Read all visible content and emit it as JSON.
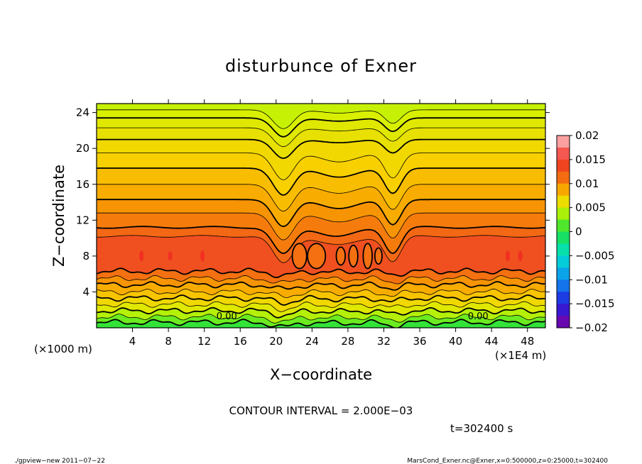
{
  "chart_data": {
    "type": "heatmap",
    "title": "disturbunce of Exner",
    "xlabel": "X−coordinate",
    "ylabel": "Z−coordinate",
    "x_unit_left": "(×1000 m)",
    "x_unit_right": "(×1E4 m)",
    "xlim": [
      0,
      50
    ],
    "ylim": [
      0,
      25
    ],
    "x_ticks": [
      4,
      8,
      12,
      16,
      20,
      24,
      28,
      32,
      36,
      40,
      44,
      48
    ],
    "y_ticks": [
      4,
      8,
      12,
      16,
      20,
      24
    ],
    "contour_interval_text": "CONTOUR INTERVAL = 2.000E−03",
    "time_text": "t=302400 s",
    "colorbar": {
      "ticks": [
        "0.02",
        "0.015",
        "0.01",
        "0.005",
        "0",
        "−0.005",
        "−0.01",
        "−0.015",
        "−0.02"
      ],
      "range": [
        -0.02,
        0.02
      ]
    },
    "contour_labels": [
      {
        "x": 14.5,
        "z": 1.2,
        "text": "0.00"
      },
      {
        "x": 42.5,
        "z": 1.2,
        "text": "0.00"
      }
    ],
    "layers": [
      {
        "z_top": 25.0,
        "value": 0.0045
      },
      {
        "z_top": 24.3,
        "value": 0.005
      },
      {
        "z_top": 23.4,
        "value": 0.0055
      },
      {
        "z_top": 22.3,
        "value": 0.006
      },
      {
        "z_top": 21.0,
        "value": 0.0065
      },
      {
        "z_top": 19.5,
        "value": 0.007
      },
      {
        "z_top": 17.8,
        "value": 0.0078
      },
      {
        "z_top": 16.0,
        "value": 0.0085
      },
      {
        "z_top": 14.3,
        "value": 0.0095
      },
      {
        "z_top": 12.8,
        "value": 0.0105
      },
      {
        "z_top": 11.2,
        "value": 0.0115
      },
      {
        "z_top": 10.2,
        "value": 0.013
      },
      {
        "z_top": 6.3,
        "value": 0.011
      },
      {
        "z_top": 5.5,
        "value": 0.0095
      },
      {
        "z_top": 4.8,
        "value": 0.0085
      },
      {
        "z_top": 4.0,
        "value": 0.0075
      },
      {
        "z_top": 3.3,
        "value": 0.0065
      },
      {
        "z_top": 2.6,
        "value": 0.0055
      },
      {
        "z_top": 1.9,
        "value": 0.004
      },
      {
        "z_top": 1.2,
        "value": 0.002
      },
      {
        "z_top": 0.6,
        "value": 0.0005
      }
    ],
    "dips": [
      {
        "x": 20.8,
        "width": 1.6,
        "depth_top": 3.5,
        "depth_mid": 3.0
      },
      {
        "x": 33.0,
        "width": 1.3,
        "depth_top": 2.5,
        "depth_mid": 2.8
      },
      {
        "x": 27.0,
        "width": 2.8,
        "depth_top": 0.6,
        "depth_mid": 1.0
      }
    ]
  },
  "footer": {
    "left": "./gpview−new   2011−07−22",
    "right": "MarsCond_Exner.nc@Exner,x=0:500000,z=0:25000,t=302400"
  }
}
